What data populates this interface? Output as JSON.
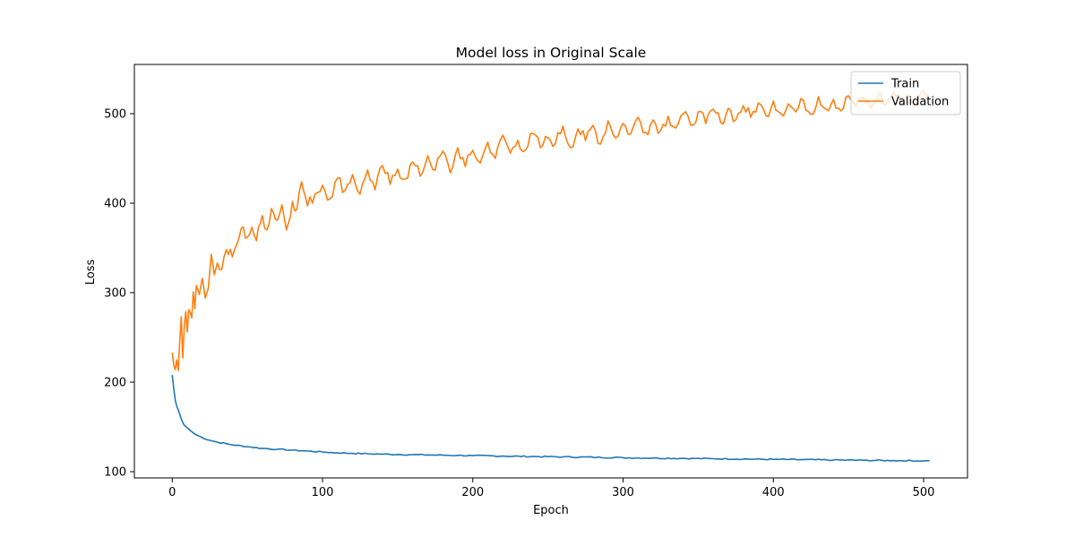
{
  "chart_data": {
    "type": "line",
    "title": "Model loss in Original Scale",
    "xlabel": "Epoch",
    "ylabel": "Loss",
    "xlim": [
      -25.2,
      529.2
    ],
    "ylim": [
      93,
      555
    ],
    "x_ticks": [
      0,
      100,
      200,
      300,
      400,
      500
    ],
    "y_ticks": [
      100,
      200,
      300,
      400,
      500
    ],
    "grid": false,
    "legend_position": "top-right",
    "colors": {
      "train": "#1f77b4",
      "validation": "#ff7f0e"
    },
    "series": [
      {
        "name": "Train",
        "key": "train",
        "x": [
          0,
          1,
          2,
          3,
          4,
          5,
          6,
          7,
          8,
          10,
          12,
          15,
          20,
          25,
          30,
          40,
          50,
          60,
          70,
          80,
          90,
          100,
          110,
          120,
          130,
          140,
          150,
          160,
          170,
          180,
          190,
          200,
          220,
          240,
          260,
          280,
          300,
          320,
          340,
          360,
          380,
          400,
          420,
          440,
          460,
          480,
          500,
          504
        ],
        "values": [
          208,
          193,
          180,
          173,
          169,
          164,
          159,
          155,
          152,
          149,
          146,
          142,
          138,
          135,
          133,
          130,
          128,
          126,
          125,
          124,
          123,
          122,
          121,
          120.5,
          120,
          119.6,
          119.2,
          119,
          118.7,
          118.4,
          118.2,
          117.9,
          117.4,
          116.9,
          116.5,
          116.1,
          115.6,
          115.2,
          114.8,
          114.5,
          114.1,
          113.7,
          113.4,
          113,
          112.7,
          112.4,
          112.1,
          112
        ]
      },
      {
        "name": "Validation",
        "key": "validation",
        "x": [
          0,
          1,
          2,
          3,
          4,
          5,
          6,
          7,
          8,
          9,
          10,
          11,
          12,
          13,
          14,
          15,
          16,
          18,
          20,
          22,
          24,
          26,
          28,
          30,
          33,
          36,
          40,
          43,
          46,
          50,
          53,
          56,
          60,
          63,
          66,
          70,
          73,
          76,
          80,
          83,
          86,
          90,
          95,
          100,
          105,
          110,
          115,
          120,
          125,
          130,
          135,
          140,
          145,
          150,
          155,
          160,
          165,
          170,
          175,
          180,
          185,
          190,
          195,
          200,
          205,
          210,
          215,
          220,
          225,
          230,
          235,
          240,
          245,
          250,
          255,
          260,
          265,
          270,
          275,
          280,
          285,
          290,
          295,
          300,
          305,
          310,
          315,
          320,
          325,
          330,
          335,
          340,
          345,
          350,
          355,
          360,
          365,
          370,
          375,
          380,
          385,
          390,
          395,
          400,
          405,
          410,
          415,
          420,
          425,
          430,
          435,
          440,
          445,
          450,
          455,
          460,
          465,
          470,
          475,
          480,
          485,
          490,
          495,
          500,
          504
        ],
        "values": [
          233,
          219,
          214,
          225,
          213,
          246,
          273,
          227,
          262,
          279,
          256,
          281,
          278,
          272,
          301,
          282,
          308,
          298,
          316,
          294,
          305,
          343,
          320,
          333,
          326,
          348,
          340,
          354,
          372,
          362,
          373,
          358,
          386,
          370,
          394,
          381,
          398,
          370,
          402,
          393,
          424,
          397,
          410,
          420,
          405,
          428,
          414,
          432,
          410,
          437,
          415,
          442,
          421,
          438,
          427,
          446,
          430,
          453,
          437,
          458,
          434,
          462,
          441,
          459,
          445,
          468,
          450,
          476,
          456,
          470,
          459,
          478,
          462,
          473,
          467,
          486,
          462,
          483,
          470,
          487,
          466,
          492,
          473,
          489,
          477,
          496,
          479,
          493,
          481,
          497,
          484,
          500,
          487,
          502,
          489,
          505,
          490,
          506,
          493,
          509,
          496,
          512,
          498,
          514,
          500,
          511,
          502,
          515,
          499,
          519,
          505,
          516,
          503,
          520,
          508,
          518,
          506,
          522,
          510,
          524,
          512,
          521,
          509,
          526,
          515
        ]
      }
    ]
  }
}
